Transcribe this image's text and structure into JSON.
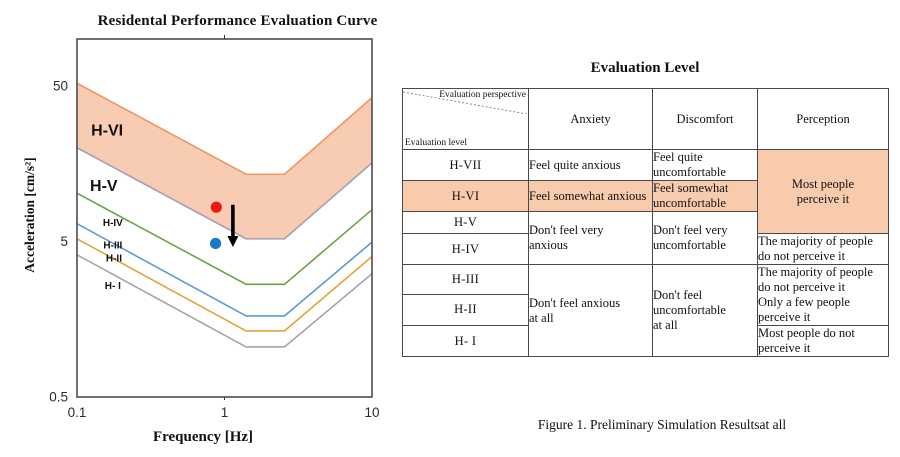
{
  "colors": {
    "peach": "#F8CBAD",
    "band_fill": "#F7CCB2",
    "band_upper_edge": "#EC9A66",
    "band_lower_edge": "#ABA0B4",
    "green_curve": "#6AA343",
    "blue_curve": "#5B9BD5",
    "amber_curve": "#E5A33C",
    "gray_curve": "#A6A6A6",
    "red_point": "#EE1515",
    "blue_point": "#1B78C3"
  },
  "chart": {
    "title": "Residental Performance Evaluation Curve",
    "xlabel": "Frequency [Hz]",
    "ylabel": "Acceleration [cm/s²]"
  },
  "chart_data": {
    "type": "line",
    "title": "Residental Performance Evaluation Curve",
    "xlabel": "Frequency [Hz]",
    "ylabel": "Acceleration [cm/s²]",
    "x_scale": "log",
    "y_scale": "log",
    "xlim": [
      0.1,
      10
    ],
    "ylim": [
      0.5,
      100
    ],
    "grid": false,
    "x_ticks": [
      {
        "v": 0.1,
        "label": "0.1"
      },
      {
        "v": 1,
        "label": "1"
      },
      {
        "v": 10,
        "label": "10"
      }
    ],
    "y_ticks": [
      {
        "v": 50,
        "label": "50"
      },
      {
        "v": 5,
        "label": "5"
      },
      {
        "v": 0.5,
        "label": "0.5"
      }
    ],
    "band": {
      "name": "h-vi-zone",
      "fill": "#F7CCB2",
      "upper": {
        "color": "#EC9A66",
        "points": [
          [
            0.1,
            52
          ],
          [
            1.4,
            13.5
          ],
          [
            2.55,
            13.5
          ],
          [
            10,
            42
          ]
        ]
      },
      "lower": {
        "color": "#ABA0B4",
        "points": [
          [
            0.1,
            20
          ],
          [
            1.4,
            5.2
          ],
          [
            2.55,
            5.2
          ],
          [
            10,
            16
          ]
        ]
      }
    },
    "series": [
      {
        "name": "h-v-boundary",
        "color": "#6AA343",
        "points": [
          [
            0.1,
            10.2
          ],
          [
            1.4,
            2.65
          ],
          [
            2.55,
            2.65
          ],
          [
            10,
            8.0
          ]
        ]
      },
      {
        "name": "h-iv-boundary",
        "color": "#5B9BD5",
        "points": [
          [
            0.1,
            6.5
          ],
          [
            1.4,
            1.66
          ],
          [
            2.55,
            1.66
          ],
          [
            10,
            4.95
          ]
        ]
      },
      {
        "name": "h-iii-boundary",
        "color": "#E5A33C",
        "points": [
          [
            0.1,
            5.2
          ],
          [
            1.4,
            1.33
          ],
          [
            2.55,
            1.33
          ],
          [
            10,
            4.0
          ]
        ]
      },
      {
        "name": "h-ii-boundary",
        "color": "#A6A6A6",
        "points": [
          [
            0.1,
            4.1
          ],
          [
            1.4,
            1.05
          ],
          [
            2.55,
            1.05
          ],
          [
            10,
            3.1
          ]
        ]
      }
    ],
    "zone_labels": [
      {
        "text": "H-VI",
        "x": 0.16,
        "y": 26,
        "big": true
      },
      {
        "text": "H-V",
        "x": 0.152,
        "y": 11.4,
        "big": true
      },
      {
        "text": "H-IV",
        "x": 0.175,
        "y": 6.6,
        "big": false
      },
      {
        "text": "H-III",
        "x": 0.175,
        "y": 4.75,
        "big": false
      },
      {
        "text": "H-II",
        "x": 0.178,
        "y": 3.9,
        "big": false
      },
      {
        "text": "H- I",
        "x": 0.175,
        "y": 2.6,
        "big": false
      }
    ],
    "points": [
      {
        "name": "red-point",
        "x": 0.88,
        "y": 8.3,
        "r": 5.6,
        "color": "#EE1515"
      },
      {
        "name": "blue-point",
        "x": 0.87,
        "y": 4.85,
        "r": 5.6,
        "color": "#1B78C3"
      }
    ],
    "arrow": {
      "x": 1.14,
      "y_from": 8.6,
      "y_to": 4.6,
      "color": "#000000"
    }
  },
  "table": {
    "title": "Evaluation Level",
    "header": {
      "corner_top": "Evaluation perspective",
      "corner_bottom": "Evaluation level",
      "columns": [
        "Anxiety",
        "Discomfort",
        "Perception"
      ]
    },
    "levels": [
      "H-VII",
      "H-VI",
      "H-V",
      "H-IV",
      "H-III",
      "H-II",
      "H- I"
    ],
    "cells": {
      "anxiety_hvii": "Feel quite anxious",
      "anxiety_hvi": "Feel somewhat anxious",
      "anxiety_hv_hiv": "Don't feel very\nanxious",
      "anxiety_hiii_hi": "Don't feel anxious\nat all",
      "discomfort_hvii": "Feel quite\nuncomfortable",
      "discomfort_hvi": "Feel somewhat\nuncomfortable",
      "discomfort_hv_hiv": "Don't feel very\nuncomfortable",
      "discomfort_hiii_hi": "Don't feel\nuncomfortable\nat all",
      "perception_hvii_hv": "Most people\nperceive it",
      "perception_hiv": "The majority of people\ndo not perceive it",
      "perception_hiii_hii": "The majority of people\ndo not perceive it\nOnly a few people\nperceive it",
      "perception_hi": "Most people do not\nperceive it"
    }
  },
  "figure": {
    "caption": "Figure 1. Preliminary Simulation Resultsat all"
  }
}
